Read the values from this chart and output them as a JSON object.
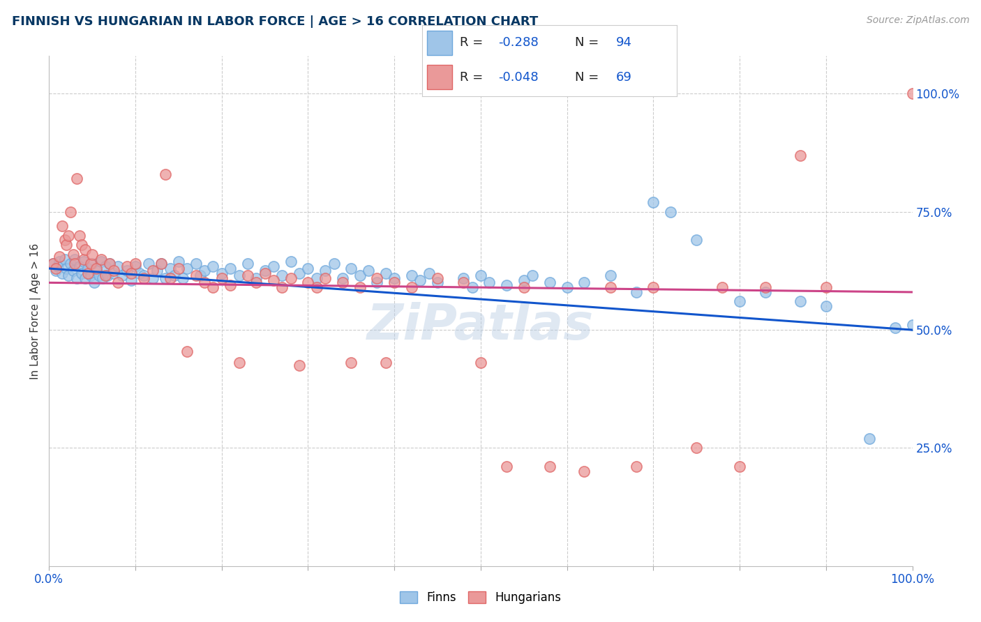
{
  "title": "FINNISH VS HUNGARIAN IN LABOR FORCE | AGE > 16 CORRELATION CHART",
  "source": "Source: ZipAtlas.com",
  "ylabel": "In Labor Force | Age > 16",
  "xlim": [
    0,
    1
  ],
  "ylim": [
    0.0,
    1.08
  ],
  "ytick_positions": [
    0.25,
    0.5,
    0.75,
    1.0
  ],
  "yticklabels": [
    "25.0%",
    "50.0%",
    "75.0%",
    "100.0%"
  ],
  "xtick_positions": [
    0.0,
    0.1,
    0.2,
    0.3,
    0.4,
    0.5,
    0.6,
    0.7,
    0.8,
    0.9,
    1.0
  ],
  "xticklabels": [
    "0.0%",
    "",
    "",
    "",
    "",
    "",
    "",
    "",
    "",
    "",
    "100.0%"
  ],
  "finn_color": "#9fc5e8",
  "hungarian_color": "#ea9999",
  "finn_edge_color": "#6fa8dc",
  "hungarian_edge_color": "#e06666",
  "finn_line_color": "#1155cc",
  "hungarian_line_color": "#cc4488",
  "finn_r": -0.288,
  "finn_n": 94,
  "hungarian_r": -0.048,
  "hungarian_n": 69,
  "finn_intercept": 0.63,
  "finn_slope": -0.13,
  "hungarian_intercept": 0.6,
  "hungarian_slope": -0.02,
  "background_color": "#ffffff",
  "grid_color": "#cccccc",
  "title_color": "#073763",
  "axis_label_color": "#1155cc",
  "legend_label_finn": "Finns",
  "legend_label_hungarian": "Hungarians",
  "watermark": "ZiPatlas",
  "finn_points": [
    [
      0.005,
      0.64
    ],
    [
      0.008,
      0.625
    ],
    [
      0.01,
      0.635
    ],
    [
      0.012,
      0.645
    ],
    [
      0.015,
      0.62
    ],
    [
      0.018,
      0.65
    ],
    [
      0.02,
      0.63
    ],
    [
      0.022,
      0.615
    ],
    [
      0.025,
      0.64
    ],
    [
      0.028,
      0.625
    ],
    [
      0.03,
      0.65
    ],
    [
      0.032,
      0.61
    ],
    [
      0.035,
      0.635
    ],
    [
      0.038,
      0.62
    ],
    [
      0.04,
      0.645
    ],
    [
      0.042,
      0.61
    ],
    [
      0.045,
      0.63
    ],
    [
      0.048,
      0.615
    ],
    [
      0.05,
      0.64
    ],
    [
      0.052,
      0.6
    ],
    [
      0.055,
      0.625
    ],
    [
      0.058,
      0.615
    ],
    [
      0.06,
      0.645
    ],
    [
      0.062,
      0.61
    ],
    [
      0.065,
      0.635
    ],
    [
      0.068,
      0.615
    ],
    [
      0.07,
      0.64
    ],
    [
      0.075,
      0.62
    ],
    [
      0.08,
      0.635
    ],
    [
      0.085,
      0.615
    ],
    [
      0.09,
      0.625
    ],
    [
      0.095,
      0.605
    ],
    [
      0.1,
      0.635
    ],
    [
      0.105,
      0.62
    ],
    [
      0.11,
      0.615
    ],
    [
      0.115,
      0.64
    ],
    [
      0.12,
      0.61
    ],
    [
      0.125,
      0.625
    ],
    [
      0.13,
      0.64
    ],
    [
      0.135,
      0.61
    ],
    [
      0.14,
      0.63
    ],
    [
      0.145,
      0.615
    ],
    [
      0.15,
      0.645
    ],
    [
      0.155,
      0.61
    ],
    [
      0.16,
      0.63
    ],
    [
      0.17,
      0.64
    ],
    [
      0.175,
      0.615
    ],
    [
      0.18,
      0.625
    ],
    [
      0.19,
      0.635
    ],
    [
      0.2,
      0.62
    ],
    [
      0.21,
      0.63
    ],
    [
      0.22,
      0.615
    ],
    [
      0.23,
      0.64
    ],
    [
      0.24,
      0.61
    ],
    [
      0.25,
      0.625
    ],
    [
      0.26,
      0.635
    ],
    [
      0.27,
      0.615
    ],
    [
      0.28,
      0.645
    ],
    [
      0.29,
      0.62
    ],
    [
      0.3,
      0.63
    ],
    [
      0.31,
      0.61
    ],
    [
      0.32,
      0.625
    ],
    [
      0.33,
      0.64
    ],
    [
      0.34,
      0.61
    ],
    [
      0.35,
      0.63
    ],
    [
      0.36,
      0.615
    ],
    [
      0.37,
      0.625
    ],
    [
      0.38,
      0.6
    ],
    [
      0.39,
      0.62
    ],
    [
      0.4,
      0.61
    ],
    [
      0.42,
      0.615
    ],
    [
      0.43,
      0.605
    ],
    [
      0.44,
      0.62
    ],
    [
      0.45,
      0.6
    ],
    [
      0.48,
      0.61
    ],
    [
      0.49,
      0.59
    ],
    [
      0.5,
      0.615
    ],
    [
      0.51,
      0.6
    ],
    [
      0.53,
      0.595
    ],
    [
      0.55,
      0.605
    ],
    [
      0.56,
      0.615
    ],
    [
      0.58,
      0.6
    ],
    [
      0.6,
      0.59
    ],
    [
      0.62,
      0.6
    ],
    [
      0.65,
      0.615
    ],
    [
      0.68,
      0.58
    ],
    [
      0.7,
      0.77
    ],
    [
      0.72,
      0.75
    ],
    [
      0.75,
      0.69
    ],
    [
      0.8,
      0.56
    ],
    [
      0.83,
      0.58
    ],
    [
      0.87,
      0.56
    ],
    [
      0.9,
      0.55
    ],
    [
      0.95,
      0.27
    ],
    [
      0.98,
      0.505
    ],
    [
      1.0,
      0.51
    ]
  ],
  "hungarian_points": [
    [
      0.005,
      0.64
    ],
    [
      0.008,
      0.63
    ],
    [
      0.012,
      0.655
    ],
    [
      0.015,
      0.72
    ],
    [
      0.018,
      0.69
    ],
    [
      0.02,
      0.68
    ],
    [
      0.022,
      0.7
    ],
    [
      0.025,
      0.75
    ],
    [
      0.028,
      0.66
    ],
    [
      0.03,
      0.64
    ],
    [
      0.032,
      0.82
    ],
    [
      0.035,
      0.7
    ],
    [
      0.038,
      0.68
    ],
    [
      0.04,
      0.65
    ],
    [
      0.042,
      0.67
    ],
    [
      0.045,
      0.62
    ],
    [
      0.048,
      0.64
    ],
    [
      0.05,
      0.66
    ],
    [
      0.055,
      0.63
    ],
    [
      0.06,
      0.65
    ],
    [
      0.065,
      0.615
    ],
    [
      0.07,
      0.64
    ],
    [
      0.075,
      0.625
    ],
    [
      0.08,
      0.6
    ],
    [
      0.09,
      0.635
    ],
    [
      0.095,
      0.62
    ],
    [
      0.1,
      0.64
    ],
    [
      0.11,
      0.61
    ],
    [
      0.12,
      0.625
    ],
    [
      0.13,
      0.64
    ],
    [
      0.135,
      0.83
    ],
    [
      0.14,
      0.61
    ],
    [
      0.15,
      0.63
    ],
    [
      0.16,
      0.455
    ],
    [
      0.17,
      0.615
    ],
    [
      0.18,
      0.6
    ],
    [
      0.19,
      0.59
    ],
    [
      0.2,
      0.61
    ],
    [
      0.21,
      0.595
    ],
    [
      0.22,
      0.43
    ],
    [
      0.23,
      0.615
    ],
    [
      0.24,
      0.6
    ],
    [
      0.25,
      0.62
    ],
    [
      0.26,
      0.605
    ],
    [
      0.27,
      0.59
    ],
    [
      0.28,
      0.61
    ],
    [
      0.29,
      0.425
    ],
    [
      0.3,
      0.6
    ],
    [
      0.31,
      0.59
    ],
    [
      0.32,
      0.61
    ],
    [
      0.34,
      0.6
    ],
    [
      0.35,
      0.43
    ],
    [
      0.36,
      0.59
    ],
    [
      0.38,
      0.61
    ],
    [
      0.39,
      0.43
    ],
    [
      0.4,
      0.6
    ],
    [
      0.42,
      0.59
    ],
    [
      0.45,
      0.61
    ],
    [
      0.48,
      0.6
    ],
    [
      0.5,
      0.43
    ],
    [
      0.53,
      0.21
    ],
    [
      0.55,
      0.59
    ],
    [
      0.58,
      0.21
    ],
    [
      0.62,
      0.2
    ],
    [
      0.65,
      0.59
    ],
    [
      0.68,
      0.21
    ],
    [
      0.7,
      0.59
    ],
    [
      0.75,
      0.25
    ],
    [
      0.78,
      0.59
    ],
    [
      0.8,
      0.21
    ],
    [
      0.83,
      0.59
    ],
    [
      0.87,
      0.87
    ],
    [
      0.9,
      0.59
    ],
    [
      1.0,
      1.0
    ]
  ]
}
